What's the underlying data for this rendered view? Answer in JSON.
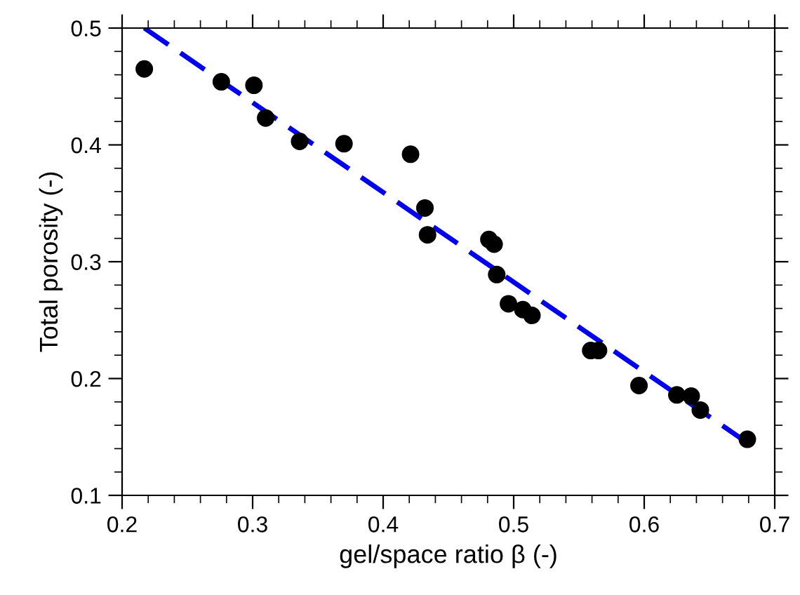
{
  "chart_data": {
    "type": "scatter",
    "xlabel": "gel/space ratio β (-)",
    "ylabel": "Total porosity (-)",
    "xlim": [
      0.2,
      0.7
    ],
    "xticks": [
      0.2,
      0.3,
      0.4,
      0.5,
      0.6,
      0.7
    ],
    "ylim": [
      0.1,
      0.5
    ],
    "yticks": [
      0.1,
      0.2,
      0.3,
      0.4,
      0.5
    ],
    "grid": false,
    "legend": false,
    "series": [
      {
        "color": "#000000",
        "marker": "circle",
        "x": [
          0.217,
          0.276,
          0.301,
          0.31,
          0.336,
          0.37,
          0.421,
          0.432,
          0.434,
          0.481,
          0.485,
          0.487,
          0.496,
          0.507,
          0.514,
          0.559,
          0.565,
          0.596,
          0.625,
          0.636,
          0.643,
          0.679
        ],
        "values": [
          0.465,
          0.454,
          0.451,
          0.423,
          0.403,
          0.401,
          0.392,
          0.346,
          0.323,
          0.319,
          0.315,
          0.289,
          0.264,
          0.259,
          0.254,
          0.224,
          0.224,
          0.194,
          0.186,
          0.185,
          0.173,
          0.148
        ]
      },
      {
        "type": "line",
        "color": "#0000ee",
        "line_style": "dashed",
        "x": [
          0.217,
          0.679
        ],
        "values": [
          0.5,
          0.145
        ]
      }
    ]
  }
}
